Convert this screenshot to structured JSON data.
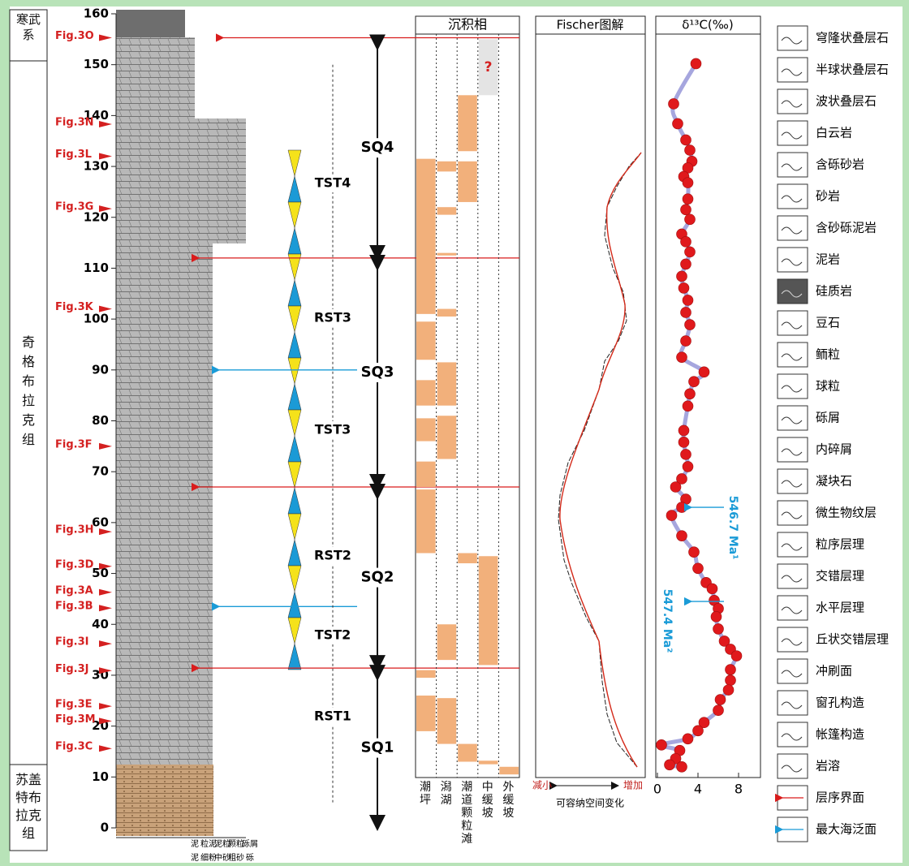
{
  "formations": [
    "寒武系",
    "奇格布拉克组",
    "苏盖特布拉克组"
  ],
  "depth_axis": {
    "ylim": [
      0,
      160
    ],
    "yticks": [
      0,
      10,
      20,
      30,
      40,
      50,
      60,
      70,
      80,
      90,
      100,
      110,
      120,
      130,
      140,
      150,
      160
    ]
  },
  "figure_refs": [
    {
      "label": "Fig.3O",
      "depth": 155.3
    },
    {
      "label": "Fig.3N",
      "depth": 138.3
    },
    {
      "label": "Fig.3L",
      "depth": 132
    },
    {
      "label": "Fig.3G",
      "depth": 121.7
    },
    {
      "label": "Fig.3K",
      "depth": 102
    },
    {
      "label": "Fig.3F",
      "depth": 75
    },
    {
      "label": "Fig.3H",
      "depth": 58.2
    },
    {
      "label": "Fig.3D",
      "depth": 51.4
    },
    {
      "label": "Fig.3A",
      "depth": 46.3
    },
    {
      "label": "Fig.3B",
      "depth": 43.2
    },
    {
      "label": "Fig.3I",
      "depth": 36.2
    },
    {
      "label": "Fig.3J",
      "depth": 30.9
    },
    {
      "label": "Fig.3E",
      "depth": 23.9
    },
    {
      "label": "Fig.3M",
      "depth": 21
    },
    {
      "label": "Fig.3C",
      "depth": 15.6
    }
  ],
  "sequences": [
    "SQ4",
    "SQ3",
    "SQ2",
    "SQ1"
  ],
  "systems_tracts": [
    "TST4",
    "RST3",
    "TST3",
    "RST2",
    "TST2",
    "RST1"
  ],
  "sequence_boundaries": [
    155.3,
    112,
    67,
    31.4
  ],
  "max_flooding_surfaces": [
    90,
    43.5
  ],
  "grain_size": {
    "carbonate": [
      "泥",
      "粒泥",
      "泥粒",
      "颗粒",
      "砾屑"
    ],
    "clastic": [
      "泥",
      "细粉",
      "中砂",
      "粗砂",
      "砾"
    ]
  },
  "facies": {
    "title": "沉积相",
    "columns": [
      {
        "name": "潮坪",
        "intervals": [
          [
            110.5,
            131.5
          ],
          [
            101,
            111
          ],
          [
            92,
            99.5
          ],
          [
            83,
            88
          ],
          [
            76,
            80.5
          ],
          [
            67,
            72
          ],
          [
            54,
            66.5
          ],
          [
            29.5,
            31
          ],
          [
            19,
            26
          ]
        ]
      },
      {
        "name": "潟湖",
        "intervals": [
          [
            129,
            131
          ],
          [
            120.5,
            122
          ],
          [
            112.5,
            113
          ],
          [
            100.5,
            102
          ],
          [
            83,
            91.5
          ],
          [
            72.5,
            81
          ],
          [
            33,
            40
          ],
          [
            16.5,
            25.5
          ]
        ]
      },
      {
        "name": "潮道颗粒滩",
        "intervals": [
          [
            133,
            144
          ],
          [
            123,
            131
          ],
          [
            52,
            54
          ],
          [
            13,
            16.5
          ]
        ]
      },
      {
        "name": "中缓坡",
        "intervals": [
          [
            32,
            53.4
          ],
          [
            12.5,
            13.2
          ]
        ],
        "uncertain": [
          144,
          155
        ],
        "uncertain_label": "?"
      },
      {
        "name": "外缓坡",
        "intervals": [
          [
            10.5,
            12
          ]
        ]
      }
    ]
  },
  "fischer": {
    "title": "Fischer图解",
    "left": "减小",
    "right": "增加",
    "caption": "可容纳空间变化"
  },
  "chart_data": {
    "type": "scatter",
    "title": "δ¹³C(‰)",
    "x": [
      3.8,
      1.6,
      2.0,
      2.8,
      3.2,
      3.4,
      3.0,
      2.6,
      3.0,
      3.0,
      2.8,
      3.2,
      2.4,
      2.8,
      3.2,
      2.8,
      2.4,
      2.6,
      3.0,
      2.8,
      3.2,
      2.8,
      2.4,
      4.6,
      3.6,
      3.2,
      3.0,
      2.6,
      2.6,
      2.8,
      3.0,
      2.4,
      1.8,
      2.8,
      2.4,
      1.4,
      2.4,
      3.6,
      4.0,
      4.8,
      5.4,
      5.6,
      6.0,
      5.8,
      6.0,
      6.6,
      7.2,
      7.8,
      7.2,
      7.2,
      7.0,
      6.2,
      6.0,
      4.6,
      4.0,
      3.0,
      0.4,
      2.2,
      1.8,
      1.2,
      2.4
    ],
    "y": [
      150.2,
      142.3,
      138.4,
      135.2,
      133.2,
      131,
      129.7,
      128,
      126.8,
      123.6,
      121.5,
      119.6,
      116.7,
      115.2,
      113.2,
      110.8,
      108.4,
      106.1,
      103.7,
      101.3,
      98.9,
      95.7,
      92.5,
      89.6,
      87.7,
      85.3,
      82.9,
      78.1,
      75.8,
      73.4,
      71,
      68.6,
      67,
      64.6,
      63,
      61.4,
      57.4,
      54.2,
      51,
      48.2,
      47,
      44.7,
      43.1,
      41.5,
      39.1,
      36.7,
      35.1,
      33.8,
      31.1,
      29,
      27.1,
      25.2,
      23.1,
      20.7,
      19.1,
      17.5,
      16.3,
      15.2,
      13.6,
      12.4,
      12
    ],
    "xlim": [
      0,
      10
    ],
    "xticks": [
      0,
      4,
      8
    ],
    "ylim": [
      0,
      160
    ],
    "color": "#e0191c",
    "line_color": "#a6a6de",
    "annotations": [
      {
        "text": "546.7 Ma¹",
        "y": 63
      },
      {
        "text": "547.4 Ma²",
        "y": 44.5
      }
    ]
  },
  "legend": [
    "穹隆状叠层石",
    "半球状叠层石",
    "波状叠层石",
    "白云岩",
    "含砾砂岩",
    "砂岩",
    "含砂砾泥岩",
    "泥岩",
    "硅质岩",
    "豆石",
    "鲕粒",
    "球粒",
    "砾屑",
    "内碎屑",
    "凝块石",
    "微生物纹层",
    "粒序层理",
    "交错层理",
    "水平层理",
    "丘状交错层理",
    "冲刷面",
    "窗孔构造",
    "帐篷构造",
    "岩溶",
    "层序界面",
    "最大海泛面"
  ]
}
